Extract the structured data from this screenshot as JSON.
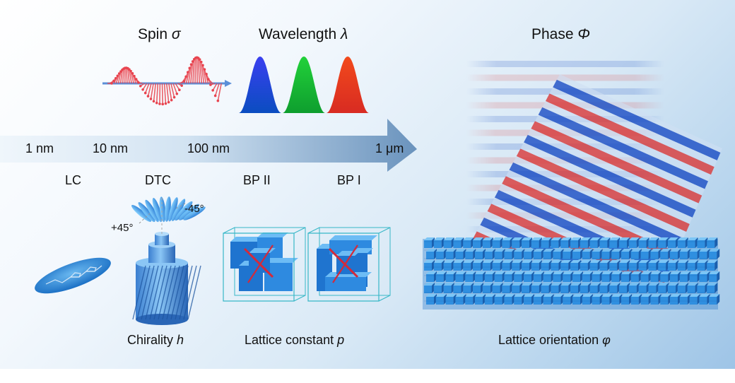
{
  "top_labels": {
    "spin": {
      "name": "Spin ",
      "symbol": "σ"
    },
    "wavelength": {
      "name": "Wavelength ",
      "symbol": "λ"
    },
    "phase": {
      "name": "Phase ",
      "symbol": "Φ"
    }
  },
  "scale_ticks": [
    "1 nm",
    "10 nm",
    "100 nm",
    "1 μm"
  ],
  "structures": [
    "LC",
    "DTC",
    "BP II",
    "BP I"
  ],
  "angles": {
    "plus": "+45°",
    "minus": "-45°"
  },
  "bottom_labels": {
    "chirality": {
      "name": "Chirality ",
      "symbol": "h"
    },
    "lattice_constant": {
      "name": "Lattice constant ",
      "symbol": "p"
    },
    "lattice_orientation": {
      "name": "Lattice orientation ",
      "symbol": "φ"
    }
  },
  "colors": {
    "arrow_light": "#eaf3fb",
    "arrow_dark": "#6f97bf",
    "spectrum": [
      "#2a2adf",
      "#22c829",
      "#ef3a1c"
    ],
    "spin_arrows": "#e8444f",
    "stripe_red": "#d93c3c",
    "stripe_blue": "#1d4fc4",
    "cube_blue": "#2f8fe0"
  }
}
